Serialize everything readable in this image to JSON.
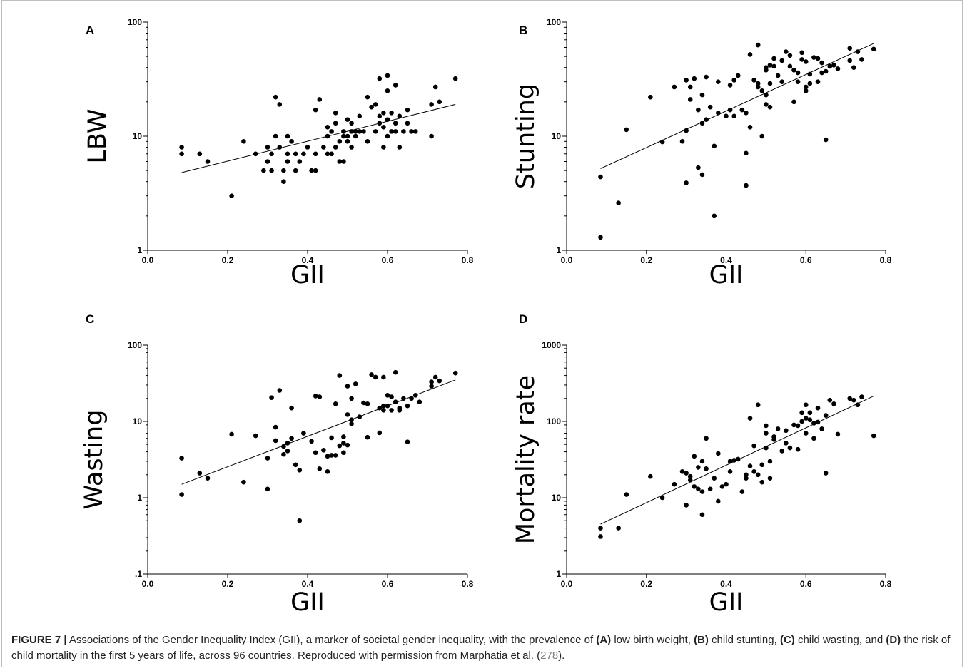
{
  "chart_data": [
    {
      "type": "scatter",
      "panel_label": "A",
      "xlabel": "GII",
      "ylabel": "LBW",
      "xlim": [
        0,
        0.8
      ],
      "ylim": [
        1,
        100
      ],
      "y_scale": "log",
      "xticks": [
        "0.0",
        "0.2",
        "0.4",
        "0.6",
        "0.8"
      ],
      "yticks": [
        "1",
        "10",
        "100"
      ],
      "y_tick_values": [
        1,
        10,
        100
      ],
      "trendline": [
        [
          0.085,
          4.8
        ],
        [
          0.77,
          19
        ]
      ],
      "points": [
        [
          0.085,
          8
        ],
        [
          0.085,
          7
        ],
        [
          0.13,
          7
        ],
        [
          0.15,
          6
        ],
        [
          0.21,
          3
        ],
        [
          0.24,
          9
        ],
        [
          0.27,
          7
        ],
        [
          0.29,
          5
        ],
        [
          0.3,
          8
        ],
        [
          0.3,
          6
        ],
        [
          0.31,
          5
        ],
        [
          0.31,
          7
        ],
        [
          0.32,
          10
        ],
        [
          0.32,
          22
        ],
        [
          0.33,
          19
        ],
        [
          0.33,
          8
        ],
        [
          0.34,
          4
        ],
        [
          0.34,
          5
        ],
        [
          0.35,
          6
        ],
        [
          0.35,
          7
        ],
        [
          0.35,
          10
        ],
        [
          0.36,
          9
        ],
        [
          0.37,
          5
        ],
        [
          0.37,
          7
        ],
        [
          0.38,
          6
        ],
        [
          0.39,
          7
        ],
        [
          0.4,
          8
        ],
        [
          0.41,
          5
        ],
        [
          0.42,
          5
        ],
        [
          0.42,
          7
        ],
        [
          0.42,
          17
        ],
        [
          0.43,
          21
        ],
        [
          0.44,
          8
        ],
        [
          0.45,
          7
        ],
        [
          0.45,
          10
        ],
        [
          0.45,
          12
        ],
        [
          0.46,
          7
        ],
        [
          0.46,
          11
        ],
        [
          0.47,
          8
        ],
        [
          0.47,
          13
        ],
        [
          0.47,
          16
        ],
        [
          0.48,
          9
        ],
        [
          0.48,
          6
        ],
        [
          0.49,
          6
        ],
        [
          0.49,
          10
        ],
        [
          0.49,
          11
        ],
        [
          0.5,
          9
        ],
        [
          0.5,
          10
        ],
        [
          0.5,
          14
        ],
        [
          0.51,
          8
        ],
        [
          0.51,
          11
        ],
        [
          0.51,
          13
        ],
        [
          0.52,
          10
        ],
        [
          0.52,
          11
        ],
        [
          0.53,
          15
        ],
        [
          0.53,
          11
        ],
        [
          0.54,
          11
        ],
        [
          0.55,
          9
        ],
        [
          0.55,
          22
        ],
        [
          0.56,
          18
        ],
        [
          0.57,
          19
        ],
        [
          0.57,
          11
        ],
        [
          0.58,
          13
        ],
        [
          0.58,
          15
        ],
        [
          0.58,
          32
        ],
        [
          0.59,
          8
        ],
        [
          0.59,
          12
        ],
        [
          0.59,
          16
        ],
        [
          0.6,
          10
        ],
        [
          0.6,
          14
        ],
        [
          0.6,
          25
        ],
        [
          0.6,
          34
        ],
        [
          0.61,
          11
        ],
        [
          0.61,
          16
        ],
        [
          0.62,
          11
        ],
        [
          0.62,
          13
        ],
        [
          0.62,
          28
        ],
        [
          0.63,
          8
        ],
        [
          0.63,
          15
        ],
        [
          0.64,
          11
        ],
        [
          0.65,
          13
        ],
        [
          0.65,
          17
        ],
        [
          0.66,
          11
        ],
        [
          0.67,
          11
        ],
        [
          0.71,
          10
        ],
        [
          0.71,
          19
        ],
        [
          0.72,
          27
        ],
        [
          0.73,
          20
        ],
        [
          0.77,
          32
        ]
      ]
    },
    {
      "type": "scatter",
      "panel_label": "B",
      "xlabel": "GII",
      "ylabel": "Stunting",
      "xlim": [
        0,
        0.8
      ],
      "ylim": [
        1,
        100
      ],
      "y_scale": "log",
      "xticks": [
        "0.0",
        "0.2",
        "0.4",
        "0.6",
        "0.8"
      ],
      "yticks": [
        "1",
        "10",
        "100"
      ],
      "y_tick_values": [
        1,
        10,
        100
      ],
      "trendline": [
        [
          0.085,
          5.2
        ],
        [
          0.77,
          65
        ]
      ],
      "points": [
        [
          0.085,
          1.3
        ],
        [
          0.085,
          4.4
        ],
        [
          0.13,
          2.6
        ],
        [
          0.15,
          11.4
        ],
        [
          0.21,
          22
        ],
        [
          0.24,
          8.9
        ],
        [
          0.27,
          27
        ],
        [
          0.29,
          9
        ],
        [
          0.3,
          3.9
        ],
        [
          0.3,
          11.2
        ],
        [
          0.3,
          31
        ],
        [
          0.31,
          27
        ],
        [
          0.31,
          21
        ],
        [
          0.32,
          32
        ],
        [
          0.33,
          17
        ],
        [
          0.33,
          5.3
        ],
        [
          0.34,
          4.6
        ],
        [
          0.34,
          23
        ],
        [
          0.34,
          13
        ],
        [
          0.35,
          33
        ],
        [
          0.35,
          14
        ],
        [
          0.36,
          18
        ],
        [
          0.37,
          2
        ],
        [
          0.37,
          8.2
        ],
        [
          0.38,
          16
        ],
        [
          0.38,
          30
        ],
        [
          0.4,
          15
        ],
        [
          0.41,
          17
        ],
        [
          0.41,
          28
        ],
        [
          0.42,
          15
        ],
        [
          0.42,
          31
        ],
        [
          0.43,
          34
        ],
        [
          0.44,
          17
        ],
        [
          0.45,
          16
        ],
        [
          0.45,
          7.1
        ],
        [
          0.45,
          3.7
        ],
        [
          0.46,
          52
        ],
        [
          0.46,
          12
        ],
        [
          0.47,
          31
        ],
        [
          0.48,
          27
        ],
        [
          0.48,
          29
        ],
        [
          0.48,
          63
        ],
        [
          0.49,
          10
        ],
        [
          0.49,
          25
        ],
        [
          0.5,
          40
        ],
        [
          0.5,
          38
        ],
        [
          0.5,
          23
        ],
        [
          0.5,
          19
        ],
        [
          0.51,
          42
        ],
        [
          0.51,
          29
        ],
        [
          0.51,
          18
        ],
        [
          0.52,
          41
        ],
        [
          0.52,
          48
        ],
        [
          0.53,
          34
        ],
        [
          0.54,
          30
        ],
        [
          0.54,
          46
        ],
        [
          0.55,
          55
        ],
        [
          0.56,
          51
        ],
        [
          0.56,
          41
        ],
        [
          0.57,
          38
        ],
        [
          0.57,
          20
        ],
        [
          0.58,
          30
        ],
        [
          0.58,
          36
        ],
        [
          0.59,
          54
        ],
        [
          0.59,
          47
        ],
        [
          0.6,
          45
        ],
        [
          0.6,
          27
        ],
        [
          0.6,
          25
        ],
        [
          0.61,
          29
        ],
        [
          0.61,
          35
        ],
        [
          0.62,
          49
        ],
        [
          0.63,
          30
        ],
        [
          0.63,
          48
        ],
        [
          0.64,
          36
        ],
        [
          0.64,
          44
        ],
        [
          0.65,
          9.3
        ],
        [
          0.65,
          37
        ],
        [
          0.66,
          41
        ],
        [
          0.67,
          42
        ],
        [
          0.68,
          39
        ],
        [
          0.71,
          59
        ],
        [
          0.71,
          46
        ],
        [
          0.72,
          40
        ],
        [
          0.73,
          55
        ],
        [
          0.74,
          47
        ],
        [
          0.77,
          58
        ]
      ]
    },
    {
      "type": "scatter",
      "panel_label": "C",
      "xlabel": "GII",
      "ylabel": "Wasting",
      "xlim": [
        0,
        0.8
      ],
      "ylim": [
        0.1,
        100
      ],
      "y_scale": "log",
      "xticks": [
        "0.0",
        "0.2",
        "0.4",
        "0.6",
        "0.8"
      ],
      "yticks": [
        ".1",
        "1",
        "10",
        "100"
      ],
      "y_tick_values": [
        0.1,
        1,
        10,
        100
      ],
      "trendline": [
        [
          0.085,
          1.5
        ],
        [
          0.77,
          35
        ]
      ],
      "points": [
        [
          0.085,
          3.3
        ],
        [
          0.085,
          1.1
        ],
        [
          0.13,
          2.1
        ],
        [
          0.15,
          1.8
        ],
        [
          0.21,
          6.8
        ],
        [
          0.24,
          1.6
        ],
        [
          0.27,
          6.5
        ],
        [
          0.3,
          3.3
        ],
        [
          0.3,
          1.3
        ],
        [
          0.31,
          20.5
        ],
        [
          0.32,
          8.4
        ],
        [
          0.32,
          5.6
        ],
        [
          0.33,
          25.5
        ],
        [
          0.34,
          4.7
        ],
        [
          0.34,
          3.7
        ],
        [
          0.35,
          4.1
        ],
        [
          0.35,
          5.2
        ],
        [
          0.36,
          15
        ],
        [
          0.36,
          6
        ],
        [
          0.37,
          2.7
        ],
        [
          0.38,
          2.3
        ],
        [
          0.38,
          0.5
        ],
        [
          0.39,
          7
        ],
        [
          0.41,
          5.5
        ],
        [
          0.42,
          3.9
        ],
        [
          0.42,
          21.5
        ],
        [
          0.43,
          21
        ],
        [
          0.43,
          2.4
        ],
        [
          0.44,
          4.2
        ],
        [
          0.45,
          3.5
        ],
        [
          0.45,
          2.2
        ],
        [
          0.46,
          3.6
        ],
        [
          0.46,
          6.1
        ],
        [
          0.47,
          17
        ],
        [
          0.47,
          3.6
        ],
        [
          0.48,
          4.8
        ],
        [
          0.48,
          40
        ],
        [
          0.49,
          5.2
        ],
        [
          0.49,
          6.3
        ],
        [
          0.49,
          3.9
        ],
        [
          0.5,
          4.9
        ],
        [
          0.5,
          12.3
        ],
        [
          0.5,
          29
        ],
        [
          0.51,
          20
        ],
        [
          0.51,
          10.5
        ],
        [
          0.51,
          9.3
        ],
        [
          0.52,
          31
        ],
        [
          0.53,
          11.5
        ],
        [
          0.54,
          17.5
        ],
        [
          0.55,
          17
        ],
        [
          0.55,
          6.2
        ],
        [
          0.56,
          41
        ],
        [
          0.57,
          38
        ],
        [
          0.58,
          15
        ],
        [
          0.58,
          7.1
        ],
        [
          0.59,
          14
        ],
        [
          0.59,
          16
        ],
        [
          0.59,
          38
        ],
        [
          0.6,
          16
        ],
        [
          0.6,
          22
        ],
        [
          0.61,
          21
        ],
        [
          0.61,
          14
        ],
        [
          0.62,
          18
        ],
        [
          0.62,
          44
        ],
        [
          0.63,
          14
        ],
        [
          0.63,
          15
        ],
        [
          0.64,
          20
        ],
        [
          0.65,
          5.4
        ],
        [
          0.65,
          16
        ],
        [
          0.66,
          20
        ],
        [
          0.67,
          22
        ],
        [
          0.68,
          18
        ],
        [
          0.71,
          29
        ],
        [
          0.71,
          33
        ],
        [
          0.72,
          38
        ],
        [
          0.73,
          34
        ],
        [
          0.77,
          43
        ]
      ]
    },
    {
      "type": "scatter",
      "panel_label": "D",
      "xlabel": "GII",
      "ylabel": "Mortality rate",
      "xlim": [
        0,
        0.8
      ],
      "ylim": [
        1,
        1000
      ],
      "y_scale": "log",
      "xticks": [
        "0.0",
        "0.2",
        "0.4",
        "0.6",
        "0.8"
      ],
      "yticks": [
        "1",
        "10",
        "100",
        "1000"
      ],
      "y_tick_values": [
        1,
        10,
        100,
        1000
      ],
      "trendline": [
        [
          0.085,
          4.5
        ],
        [
          0.77,
          215
        ]
      ],
      "points": [
        [
          0.085,
          4
        ],
        [
          0.085,
          3.1
        ],
        [
          0.13,
          4
        ],
        [
          0.15,
          11
        ],
        [
          0.21,
          19
        ],
        [
          0.24,
          10
        ],
        [
          0.27,
          15
        ],
        [
          0.29,
          22
        ],
        [
          0.3,
          8
        ],
        [
          0.3,
          21
        ],
        [
          0.31,
          17
        ],
        [
          0.31,
          19
        ],
        [
          0.32,
          35
        ],
        [
          0.32,
          14
        ],
        [
          0.33,
          25
        ],
        [
          0.33,
          13
        ],
        [
          0.34,
          30
        ],
        [
          0.34,
          6
        ],
        [
          0.34,
          12
        ],
        [
          0.35,
          60
        ],
        [
          0.35,
          24
        ],
        [
          0.36,
          13
        ],
        [
          0.37,
          18
        ],
        [
          0.38,
          38
        ],
        [
          0.38,
          9
        ],
        [
          0.39,
          14
        ],
        [
          0.4,
          15
        ],
        [
          0.41,
          30
        ],
        [
          0.41,
          22
        ],
        [
          0.42,
          31
        ],
        [
          0.43,
          32
        ],
        [
          0.44,
          12
        ],
        [
          0.45,
          20
        ],
        [
          0.45,
          18
        ],
        [
          0.46,
          110
        ],
        [
          0.46,
          26
        ],
        [
          0.47,
          22
        ],
        [
          0.47,
          48
        ],
        [
          0.48,
          20
        ],
        [
          0.48,
          165
        ],
        [
          0.49,
          16
        ],
        [
          0.49,
          27
        ],
        [
          0.5,
          70
        ],
        [
          0.5,
          88
        ],
        [
          0.5,
          45
        ],
        [
          0.51,
          18
        ],
        [
          0.51,
          30
        ],
        [
          0.52,
          63
        ],
        [
          0.52,
          58
        ],
        [
          0.53,
          80
        ],
        [
          0.54,
          41
        ],
        [
          0.55,
          76
        ],
        [
          0.55,
          52
        ],
        [
          0.56,
          45
        ],
        [
          0.57,
          90
        ],
        [
          0.58,
          43
        ],
        [
          0.58,
          88
        ],
        [
          0.59,
          130
        ],
        [
          0.59,
          100
        ],
        [
          0.6,
          165
        ],
        [
          0.6,
          110
        ],
        [
          0.6,
          70
        ],
        [
          0.61,
          105
        ],
        [
          0.61,
          130
        ],
        [
          0.62,
          95
        ],
        [
          0.62,
          60
        ],
        [
          0.63,
          150
        ],
        [
          0.63,
          98
        ],
        [
          0.64,
          80
        ],
        [
          0.65,
          21
        ],
        [
          0.65,
          120
        ],
        [
          0.66,
          190
        ],
        [
          0.67,
          170
        ],
        [
          0.68,
          68
        ],
        [
          0.71,
          200
        ],
        [
          0.72,
          190
        ],
        [
          0.73,
          165
        ],
        [
          0.74,
          210
        ],
        [
          0.77,
          65
        ]
      ]
    }
  ],
  "caption": {
    "figure_label": "FIGURE 7 |",
    "text_1": " Associations of the Gender Inequality Index (GII), a marker of societal gender inequality, with the prevalence of ",
    "label_a": "(A)",
    "text_a": " low birth weight, ",
    "label_b": "(B)",
    "text_b": " child stunting, ",
    "label_c": "(C)",
    "text_c": " child wasting, and ",
    "label_d": "(D)",
    "text_d": " the risk of child mortality in the first 5 years of life, across 96 countries. Reproduced with permission from Marphatia et al. (",
    "ref": "278",
    "text_end": ")."
  }
}
